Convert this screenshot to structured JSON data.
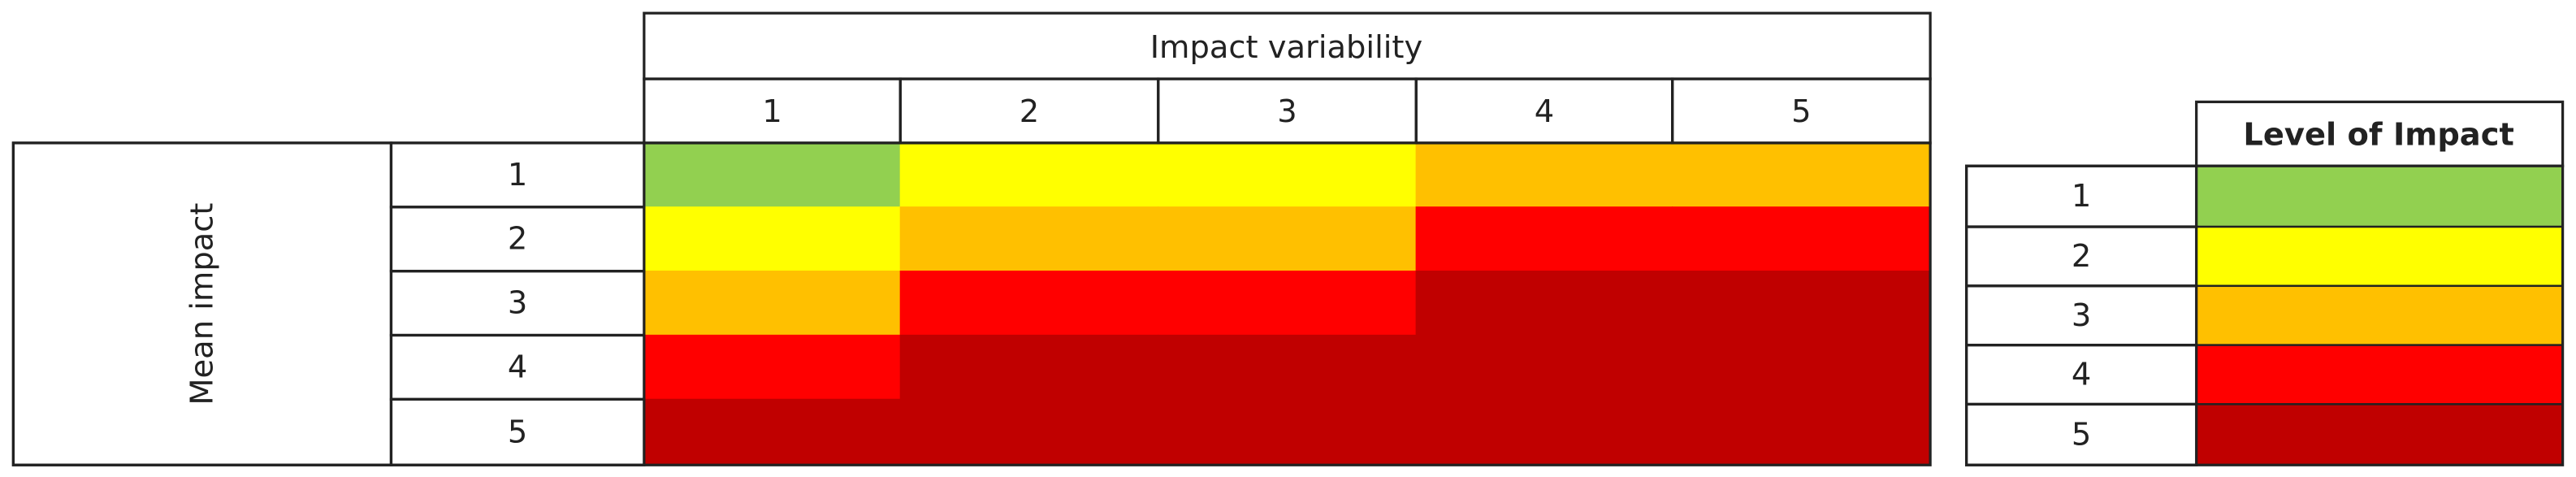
{
  "header": {
    "title": "Impact variability",
    "columns": [
      "1",
      "2",
      "3",
      "4",
      "5"
    ]
  },
  "rows": {
    "title": "Mean impact",
    "labels": [
      "1",
      "2",
      "3",
      "4",
      "5"
    ]
  },
  "matrix": {
    "levels": [
      [
        1,
        2,
        2,
        3,
        3
      ],
      [
        2,
        3,
        3,
        4,
        4
      ],
      [
        3,
        4,
        4,
        5,
        5
      ],
      [
        4,
        5,
        5,
        5,
        5
      ],
      [
        5,
        5,
        5,
        5,
        5
      ]
    ]
  },
  "legend": {
    "title": "Level of Impact",
    "levels": [
      {
        "label": "1",
        "color": "#92d050"
      },
      {
        "label": "2",
        "color": "#ffff00"
      },
      {
        "label": "3",
        "color": "#ffc000"
      },
      {
        "label": "4",
        "color": "#ff0000"
      },
      {
        "label": "5",
        "color": "#c00000"
      }
    ]
  }
}
